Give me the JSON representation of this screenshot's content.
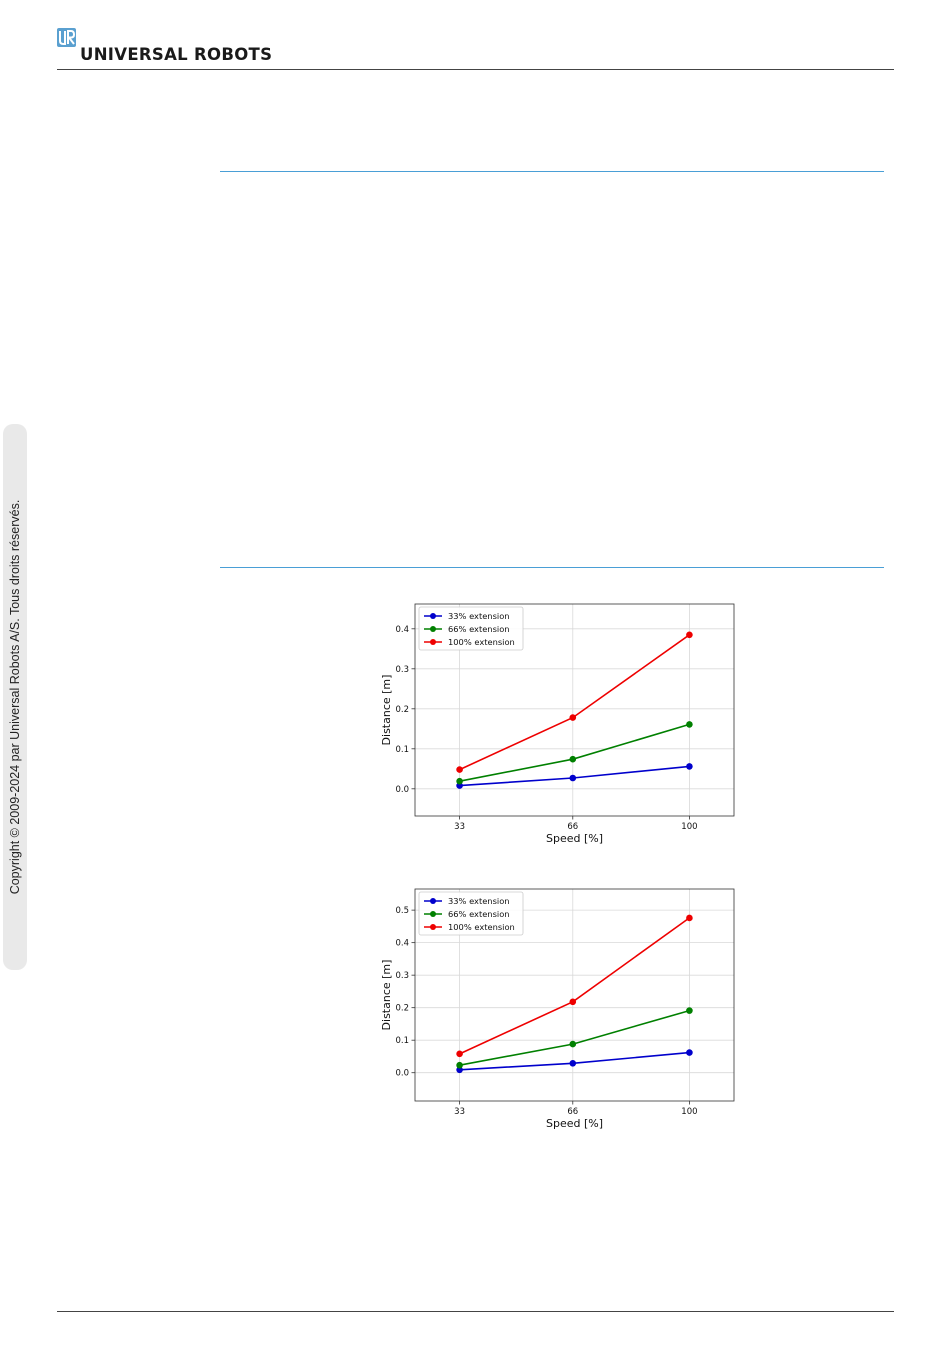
{
  "header": {
    "brand": "UNIVERSAL ROBOTS",
    "logo_icon": "ur-logo-icon",
    "brand_color": "#5aa0d0"
  },
  "sidebar": {
    "copyright": "Copyright © 2009-2024 par Universal Robots A/S. Tous droits réservés."
  },
  "chart_data": [
    {
      "type": "line",
      "title": "",
      "xlabel": "Speed [%]",
      "ylabel": "Distance [m]",
      "x": [
        33,
        66,
        100
      ],
      "x_ticks": [
        "33",
        "66",
        "100"
      ],
      "y_ticks": [
        "0.0",
        "0.1",
        "0.2",
        "0.3",
        "0.4"
      ],
      "xlim": [
        20,
        113
      ],
      "ylim": [
        -0.068,
        0.462
      ],
      "grid": true,
      "legend": "top-left",
      "series": [
        {
          "name": "33% extension",
          "color": "#0000cc",
          "values": [
            0.008,
            0.027,
            0.056
          ]
        },
        {
          "name": "66% extension",
          "color": "#008000",
          "values": [
            0.019,
            0.074,
            0.161
          ]
        },
        {
          "name": "100% extension",
          "color": "#ee0000",
          "values": [
            0.048,
            0.178,
            0.385
          ]
        }
      ]
    },
    {
      "type": "line",
      "title": "",
      "xlabel": "Speed [%]",
      "ylabel": "Distance [m]",
      "x": [
        33,
        66,
        100
      ],
      "x_ticks": [
        "33",
        "66",
        "100"
      ],
      "y_ticks": [
        "0.0",
        "0.1",
        "0.2",
        "0.3",
        "0.4",
        "0.5"
      ],
      "xlim": [
        20,
        113
      ],
      "ylim": [
        -0.087,
        0.565
      ],
      "grid": true,
      "legend": "top-left",
      "series": [
        {
          "name": "33% extension",
          "color": "#0000cc",
          "values": [
            0.009,
            0.029,
            0.062
          ]
        },
        {
          "name": "66% extension",
          "color": "#008000",
          "values": [
            0.023,
            0.088,
            0.191
          ]
        },
        {
          "name": "100% extension",
          "color": "#ee0000",
          "values": [
            0.058,
            0.218,
            0.476
          ]
        }
      ]
    }
  ]
}
